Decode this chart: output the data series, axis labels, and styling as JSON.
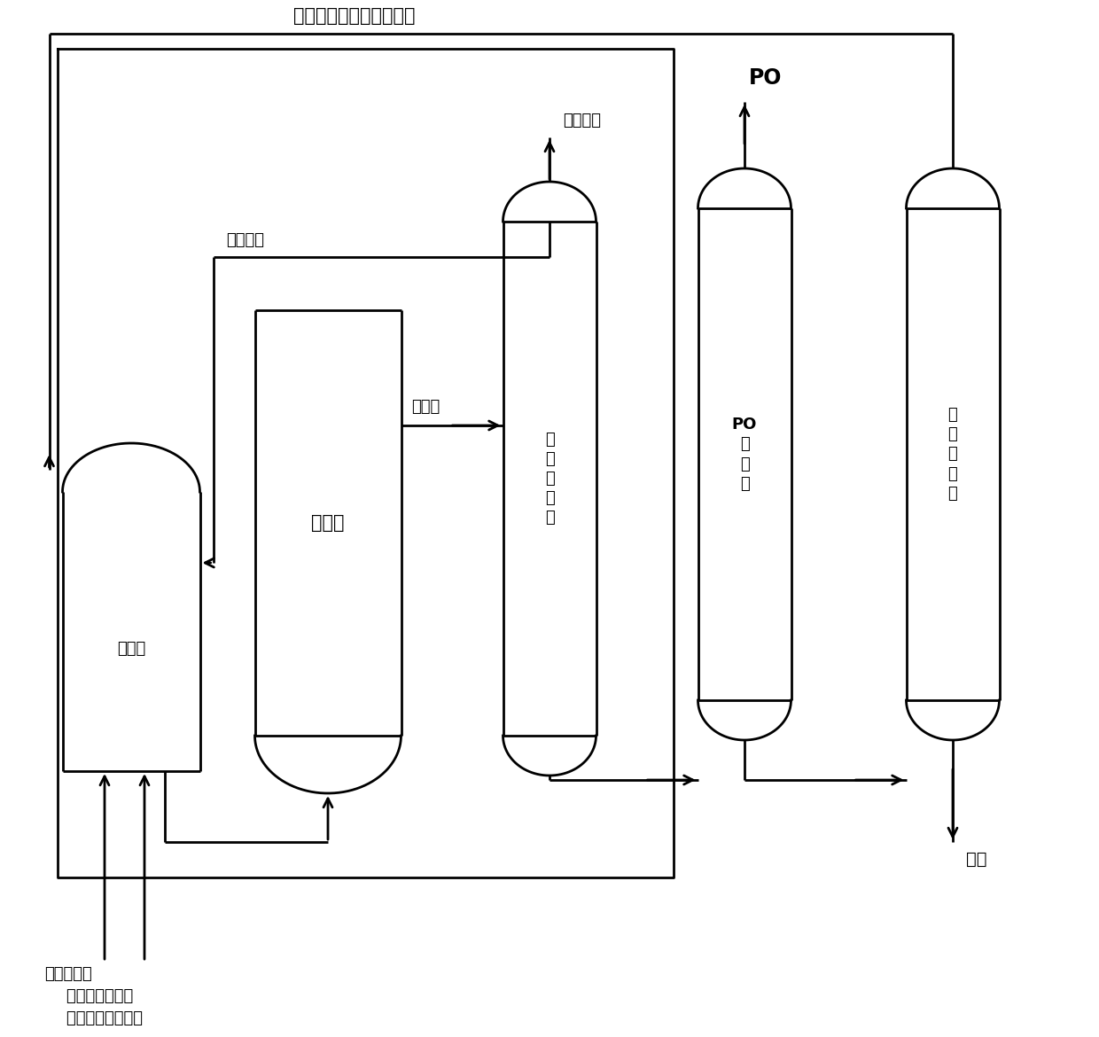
{
  "background_color": "#ffffff",
  "line_color": "#000000",
  "lw": 2.0,
  "title_text": "回收第一溶剂和第二溶剂",
  "label_huishou_bingxi": "回收丙烯",
  "label_fanying_ye": "反应液",
  "label_han_yang_wei_qi": "含氧尾气",
  "label_PO": "PO",
  "label_fei_shui": "废水",
  "label_line1": "丙烯双氧水",
  "label_line2": "    补充量第一溶剂",
  "label_line3": "    和第二溶剂混合液",
  "vessel_yuhun_guan": "预混罐",
  "vessel_fanyingqi": "反应器",
  "vessel_bingxi_fenlita": "丙\n烯\n分\n离\n塔",
  "vessel_PO_fenlita": "PO\n分\n离\n塔",
  "vessel_rongji_fenlita": "溶\n剂\n分\n离\n塔",
  "fs_title": 15,
  "fs_label": 13,
  "fs_vessel": 13
}
